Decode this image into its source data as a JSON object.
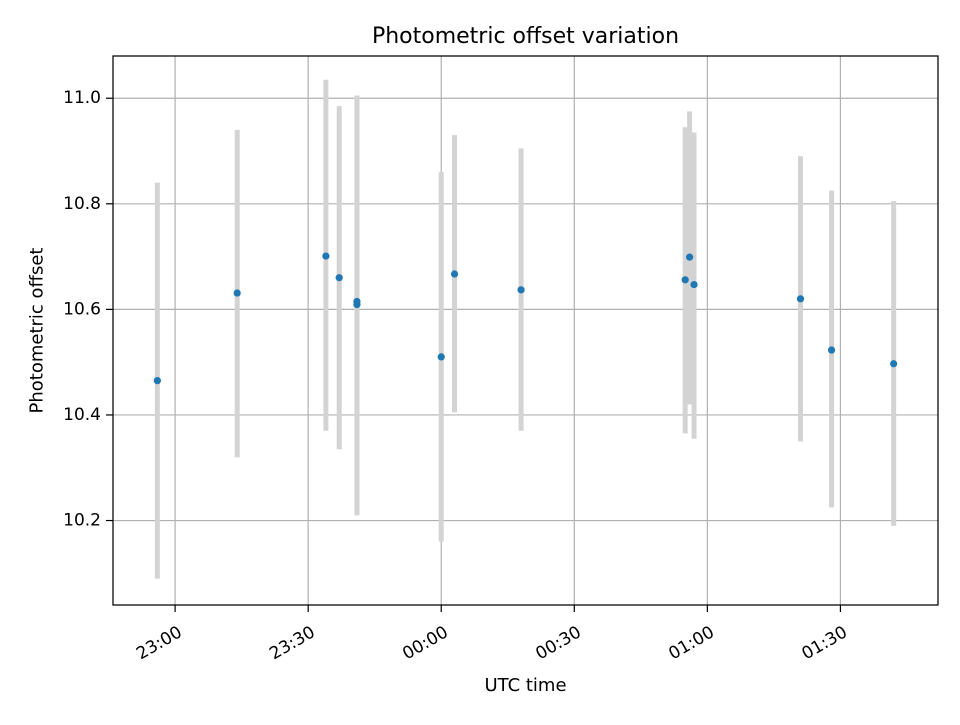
{
  "chart_data": {
    "type": "scatter",
    "title": "Photometric offset variation",
    "xlabel": "UTC time",
    "ylabel": "Photometric offset",
    "x_axis": {
      "kind": "time",
      "range": [
        "22:46",
        "01:52"
      ],
      "ticks": [
        "23:00",
        "23:30",
        "00:00",
        "00:30",
        "01:00",
        "01:30"
      ],
      "tick_label_rotation_deg": 30
    },
    "ylim": [
      10.04,
      11.08
    ],
    "yticks": [
      "10.2",
      "10.4",
      "10.6",
      "10.8",
      "11.0"
    ],
    "grid": true,
    "legend": "none",
    "marker_color": "#1f77b4",
    "errorbar_color": "#d3d3d3",
    "series": [
      {
        "points": [
          {
            "x": "22:56",
            "y": 10.465,
            "ylow": 10.09,
            "yhigh": 10.84
          },
          {
            "x": "23:14",
            "y": 10.631,
            "ylow": 10.32,
            "yhigh": 10.94
          },
          {
            "x": "23:34",
            "y": 10.701,
            "ylow": 10.37,
            "yhigh": 11.035
          },
          {
            "x": "23:37",
            "y": 10.66,
            "ylow": 10.335,
            "yhigh": 10.985
          },
          {
            "x": "23:41",
            "y": 10.615,
            "ylow": 10.21,
            "yhigh": 11.005
          },
          {
            "x": "23:41",
            "y": 10.609,
            "ylow": 10.21,
            "yhigh": 11.005
          },
          {
            "x": "00:00",
            "y": 10.51,
            "ylow": 10.16,
            "yhigh": 10.86
          },
          {
            "x": "00:03",
            "y": 10.667,
            "ylow": 10.405,
            "yhigh": 10.93
          },
          {
            "x": "00:18",
            "y": 10.637,
            "ylow": 10.37,
            "yhigh": 10.905
          },
          {
            "x": "00:55",
            "y": 10.656,
            "ylow": 10.365,
            "yhigh": 10.945
          },
          {
            "x": "00:56",
            "y": 10.699,
            "ylow": 10.42,
            "yhigh": 10.975
          },
          {
            "x": "00:57",
            "y": 10.647,
            "ylow": 10.355,
            "yhigh": 10.935
          },
          {
            "x": "01:21",
            "y": 10.62,
            "ylow": 10.35,
            "yhigh": 10.89
          },
          {
            "x": "01:28",
            "y": 10.523,
            "ylow": 10.225,
            "yhigh": 10.825
          },
          {
            "x": "01:42",
            "y": 10.497,
            "ylow": 10.19,
            "yhigh": 10.805
          }
        ]
      }
    ]
  }
}
